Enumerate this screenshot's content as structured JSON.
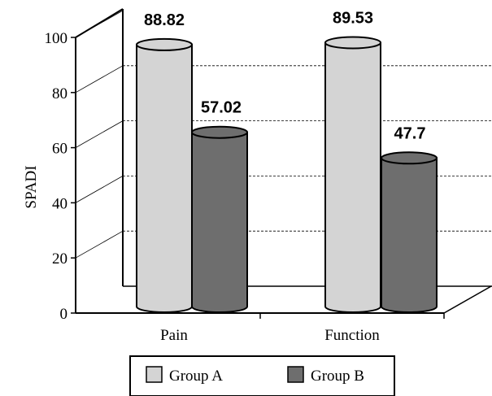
{
  "chart_data": {
    "type": "bar",
    "style": "3d-cylinder",
    "categories": [
      "Pain",
      "Function"
    ],
    "series": [
      {
        "name": "Group A",
        "values": [
          88.82,
          89.53
        ],
        "color": "#d4d4d4"
      },
      {
        "name": "Group B",
        "values": [
          57.02,
          47.7
        ],
        "color": "#6e6e6e"
      }
    ],
    "data_labels": [
      [
        "88.82",
        "89.53"
      ],
      [
        "57.02",
        "47.7"
      ]
    ],
    "ylabel": "SPADI",
    "xlabel": "",
    "ylim": [
      0,
      100
    ],
    "yticks": [
      "0",
      "20",
      "40",
      "60",
      "80",
      "100"
    ],
    "grid": "dashed-horizontal",
    "legend_position": "bottom"
  }
}
